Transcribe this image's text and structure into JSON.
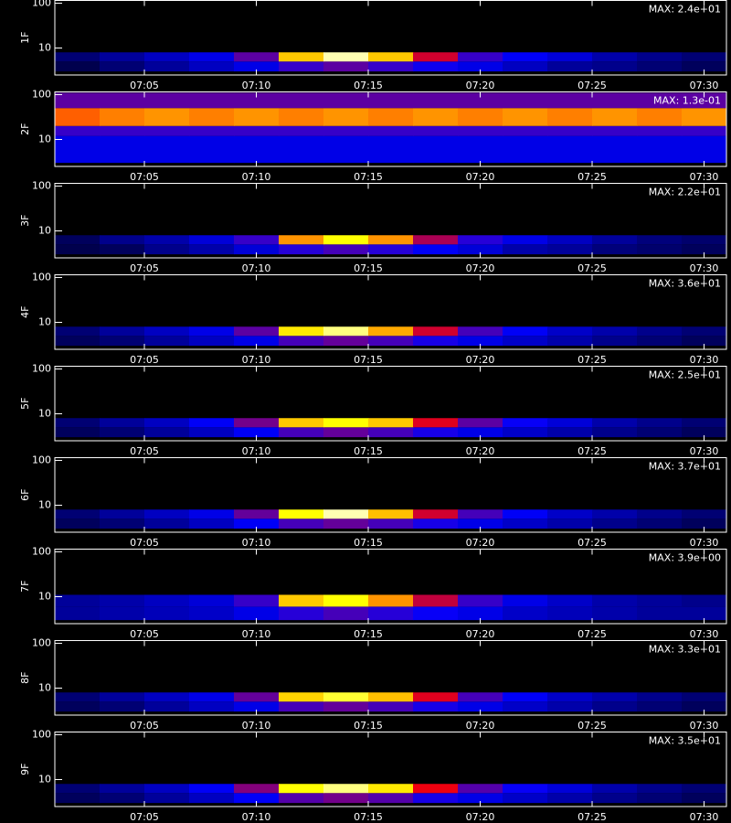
{
  "chart_data": [
    {
      "type": "heatmap",
      "ylabel": "1F",
      "annotation": "MAX: 2.4e+01",
      "log_y": true,
      "ylim": [
        2.5,
        115
      ],
      "yticks": [
        10,
        100
      ],
      "xlim": [
        "07:01",
        "07:31"
      ],
      "xticks": [
        "07:05",
        "07:10",
        "07:15",
        "07:20",
        "07:25",
        "07:30"
      ],
      "bins": [
        "07:01",
        "07:03",
        "07:05",
        "07:07",
        "07:09",
        "07:11",
        "07:13",
        "07:15",
        "07:17",
        "07:19",
        "07:21",
        "07:23",
        "07:25",
        "07:27",
        "07:29",
        "07:31"
      ],
      "ybins": [
        3,
        5,
        8
      ],
      "values": [
        [
          0.1,
          0.15,
          0.2,
          0.25,
          0.3,
          0.4,
          0.45,
          0.4,
          0.35,
          0.3,
          0.25,
          0.2,
          0.18,
          0.15,
          0.12
        ],
        [
          0.15,
          0.2,
          0.25,
          0.3,
          0.45,
          0.85,
          0.97,
          0.85,
          0.6,
          0.4,
          0.32,
          0.28,
          0.22,
          0.18,
          0.15
        ]
      ]
    },
    {
      "type": "heatmap",
      "ylabel": "2F",
      "annotation": "MAX: 1.3e-01",
      "log_y": true,
      "ylim": [
        2.5,
        115
      ],
      "yticks": [
        10,
        100
      ],
      "xlim": [
        "07:01",
        "07:31"
      ],
      "xticks": [
        "07:05",
        "07:10",
        "07:15",
        "07:20",
        "07:25",
        "07:30"
      ],
      "bins": [
        "07:01",
        "07:03",
        "07:05",
        "07:07",
        "07:09",
        "07:11",
        "07:13",
        "07:15",
        "07:17",
        "07:19",
        "07:21",
        "07:23",
        "07:25",
        "07:27",
        "07:29",
        "07:31"
      ],
      "ybins": [
        3,
        12,
        20,
        50,
        110
      ],
      "values": [
        [
          0.3,
          0.3,
          0.3,
          0.3,
          0.3,
          0.3,
          0.3,
          0.3,
          0.3,
          0.3,
          0.3,
          0.3,
          0.3,
          0.3,
          0.3
        ],
        [
          0.4,
          0.4,
          0.4,
          0.4,
          0.4,
          0.4,
          0.4,
          0.4,
          0.4,
          0.4,
          0.4,
          0.4,
          0.4,
          0.4,
          0.4
        ],
        [
          0.75,
          0.78,
          0.8,
          0.78,
          0.8,
          0.78,
          0.8,
          0.78,
          0.8,
          0.78,
          0.8,
          0.78,
          0.8,
          0.78,
          0.8
        ],
        [
          0.45,
          0.45,
          0.45,
          0.45,
          0.45,
          0.45,
          0.45,
          0.45,
          0.45,
          0.45,
          0.45,
          0.45,
          0.45,
          0.45,
          0.45
        ]
      ]
    },
    {
      "type": "heatmap",
      "ylabel": "3F",
      "annotation": "MAX: 2.2e+01",
      "log_y": true,
      "ylim": [
        2.5,
        115
      ],
      "yticks": [
        10,
        100
      ],
      "xlim": [
        "07:01",
        "07:31"
      ],
      "xticks": [
        "07:05",
        "07:10",
        "07:15",
        "07:20",
        "07:25",
        "07:30"
      ],
      "bins": [
        "07:01",
        "07:03",
        "07:05",
        "07:07",
        "07:09",
        "07:11",
        "07:13",
        "07:15",
        "07:17",
        "07:19",
        "07:21",
        "07:23",
        "07:25",
        "07:27",
        "07:29",
        "07:31"
      ],
      "ybins": [
        3,
        5,
        8
      ],
      "values": [
        [
          0.1,
          0.12,
          0.18,
          0.22,
          0.28,
          0.38,
          0.42,
          0.38,
          0.32,
          0.28,
          0.22,
          0.2,
          0.16,
          0.14,
          0.12
        ],
        [
          0.12,
          0.18,
          0.22,
          0.28,
          0.4,
          0.8,
          0.9,
          0.8,
          0.55,
          0.38,
          0.3,
          0.25,
          0.2,
          0.16,
          0.14
        ]
      ]
    },
    {
      "type": "heatmap",
      "ylabel": "4F",
      "annotation": "MAX: 3.6e+01",
      "log_y": true,
      "ylim": [
        2.5,
        115
      ],
      "yticks": [
        10,
        100
      ],
      "xlim": [
        "07:01",
        "07:31"
      ],
      "xticks": [
        "07:05",
        "07:10",
        "07:15",
        "07:20",
        "07:25",
        "07:30"
      ],
      "bins": [
        "07:01",
        "07:03",
        "07:05",
        "07:07",
        "07:09",
        "07:11",
        "07:13",
        "07:15",
        "07:17",
        "07:19",
        "07:21",
        "07:23",
        "07:25",
        "07:27",
        "07:29",
        "07:31"
      ],
      "ybins": [
        3,
        5,
        8
      ],
      "values": [
        [
          0.12,
          0.15,
          0.2,
          0.25,
          0.3,
          0.42,
          0.46,
          0.42,
          0.36,
          0.3,
          0.26,
          0.22,
          0.18,
          0.15,
          0.12
        ],
        [
          0.15,
          0.2,
          0.25,
          0.3,
          0.45,
          0.88,
          0.95,
          0.82,
          0.6,
          0.42,
          0.32,
          0.26,
          0.22,
          0.18,
          0.15
        ]
      ]
    },
    {
      "type": "heatmap",
      "ylabel": "5F",
      "annotation": "MAX: 2.5e+01",
      "log_y": true,
      "ylim": [
        2.5,
        115
      ],
      "yticks": [
        10,
        100
      ],
      "xlim": [
        "07:01",
        "07:31"
      ],
      "xticks": [
        "07:05",
        "07:10",
        "07:15",
        "07:20",
        "07:25",
        "07:30"
      ],
      "bins": [
        "07:01",
        "07:03",
        "07:05",
        "07:07",
        "07:09",
        "07:11",
        "07:13",
        "07:15",
        "07:17",
        "07:19",
        "07:21",
        "07:23",
        "07:25",
        "07:27",
        "07:29",
        "07:31"
      ],
      "ybins": [
        3,
        5,
        8
      ],
      "values": [
        [
          0.12,
          0.15,
          0.2,
          0.25,
          0.32,
          0.42,
          0.46,
          0.42,
          0.36,
          0.3,
          0.26,
          0.22,
          0.18,
          0.15,
          0.12
        ],
        [
          0.15,
          0.2,
          0.25,
          0.32,
          0.48,
          0.85,
          0.9,
          0.85,
          0.62,
          0.45,
          0.34,
          0.28,
          0.22,
          0.18,
          0.15
        ]
      ]
    },
    {
      "type": "heatmap",
      "ylabel": "6F",
      "annotation": "MAX: 3.7e+01",
      "log_y": true,
      "ylim": [
        2.5,
        115
      ],
      "yticks": [
        10,
        100
      ],
      "xlim": [
        "07:01",
        "07:31"
      ],
      "xticks": [
        "07:05",
        "07:10",
        "07:15",
        "07:20",
        "07:25",
        "07:30"
      ],
      "bins": [
        "07:01",
        "07:03",
        "07:05",
        "07:07",
        "07:09",
        "07:11",
        "07:13",
        "07:15",
        "07:17",
        "07:19",
        "07:21",
        "07:23",
        "07:25",
        "07:27",
        "07:29",
        "07:31"
      ],
      "ybins": [
        3,
        5,
        8
      ],
      "values": [
        [
          0.12,
          0.15,
          0.2,
          0.25,
          0.32,
          0.42,
          0.46,
          0.42,
          0.36,
          0.3,
          0.26,
          0.22,
          0.18,
          0.15,
          0.12
        ],
        [
          0.15,
          0.2,
          0.25,
          0.3,
          0.46,
          0.9,
          0.97,
          0.84,
          0.6,
          0.42,
          0.32,
          0.26,
          0.22,
          0.18,
          0.15
        ]
      ]
    },
    {
      "type": "heatmap",
      "ylabel": "7F",
      "annotation": "MAX: 3.9e+00",
      "log_y": true,
      "ylim": [
        2.5,
        115
      ],
      "yticks": [
        10,
        100
      ],
      "xlim": [
        "07:01",
        "07:31"
      ],
      "xticks": [
        "07:05",
        "07:10",
        "07:15",
        "07:20",
        "07:25",
        "07:30"
      ],
      "bins": [
        "07:01",
        "07:03",
        "07:05",
        "07:07",
        "07:09",
        "07:11",
        "07:13",
        "07:15",
        "07:17",
        "07:19",
        "07:21",
        "07:23",
        "07:25",
        "07:27",
        "07:29",
        "07:31"
      ],
      "ybins": [
        3,
        6,
        11
      ],
      "values": [
        [
          0.2,
          0.22,
          0.24,
          0.26,
          0.3,
          0.38,
          0.42,
          0.38,
          0.34,
          0.3,
          0.26,
          0.24,
          0.22,
          0.2,
          0.2
        ],
        [
          0.2,
          0.22,
          0.25,
          0.28,
          0.4,
          0.85,
          0.9,
          0.8,
          0.58,
          0.4,
          0.3,
          0.26,
          0.22,
          0.2,
          0.18
        ]
      ]
    },
    {
      "type": "heatmap",
      "ylabel": "8F",
      "annotation": "MAX: 3.3e+01",
      "log_y": true,
      "ylim": [
        2.5,
        115
      ],
      "yticks": [
        10,
        100
      ],
      "xlim": [
        "07:01",
        "07:31"
      ],
      "xticks": [
        "07:05",
        "07:10",
        "07:15",
        "07:20",
        "07:25",
        "07:30"
      ],
      "bins": [
        "07:01",
        "07:03",
        "07:05",
        "07:07",
        "07:09",
        "07:11",
        "07:13",
        "07:15",
        "07:17",
        "07:19",
        "07:21",
        "07:23",
        "07:25",
        "07:27",
        "07:29",
        "07:31"
      ],
      "ybins": [
        3,
        5,
        8
      ],
      "values": [
        [
          0.12,
          0.15,
          0.2,
          0.25,
          0.3,
          0.42,
          0.46,
          0.42,
          0.36,
          0.3,
          0.26,
          0.22,
          0.18,
          0.15,
          0.12
        ],
        [
          0.15,
          0.2,
          0.25,
          0.3,
          0.46,
          0.86,
          0.92,
          0.84,
          0.62,
          0.42,
          0.32,
          0.26,
          0.22,
          0.18,
          0.15
        ]
      ]
    },
    {
      "type": "heatmap",
      "ylabel": "9F",
      "annotation": "MAX: 3.5e+01",
      "log_y": true,
      "ylim": [
        2.5,
        115
      ],
      "yticks": [
        10,
        100
      ],
      "xlim": [
        "07:01",
        "07:31"
      ],
      "xticks": [
        "07:05",
        "07:10",
        "07:15",
        "07:20",
        "07:25",
        "07:30"
      ],
      "bins": [
        "07:01",
        "07:03",
        "07:05",
        "07:07",
        "07:09",
        "07:11",
        "07:13",
        "07:15",
        "07:17",
        "07:19",
        "07:21",
        "07:23",
        "07:25",
        "07:27",
        "07:29",
        "07:31"
      ],
      "ybins": [
        3,
        5,
        8
      ],
      "values": [
        [
          0.12,
          0.15,
          0.2,
          0.25,
          0.32,
          0.44,
          0.48,
          0.44,
          0.36,
          0.3,
          0.26,
          0.22,
          0.18,
          0.15,
          0.12
        ],
        [
          0.15,
          0.2,
          0.25,
          0.32,
          0.5,
          0.9,
          0.95,
          0.88,
          0.64,
          0.44,
          0.34,
          0.28,
          0.22,
          0.18,
          0.15
        ]
      ]
    }
  ]
}
